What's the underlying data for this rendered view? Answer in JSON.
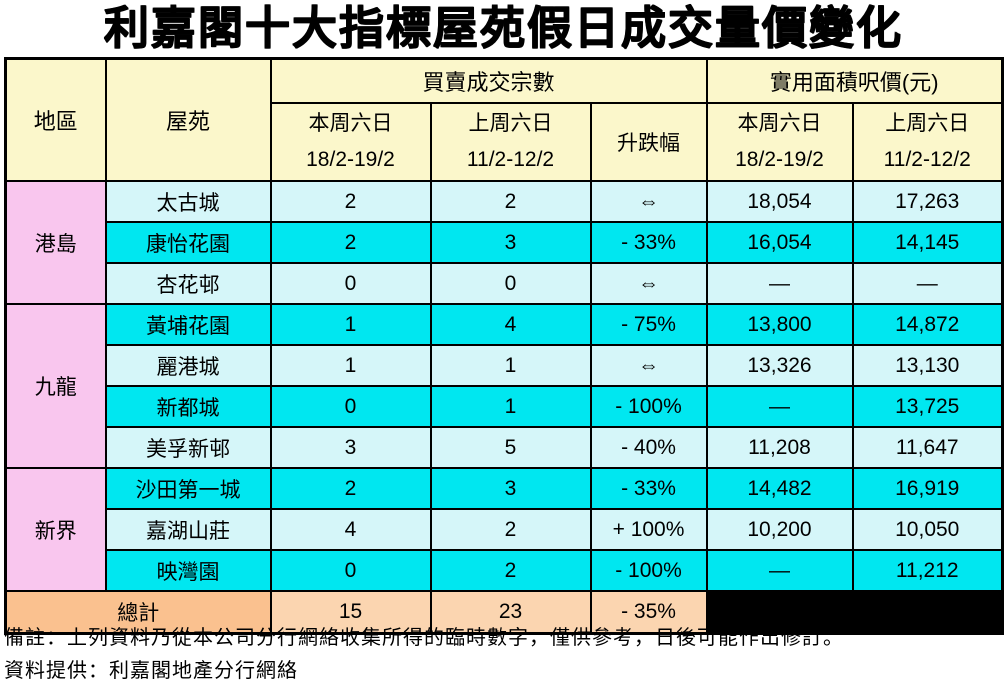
{
  "title": "利嘉閣十大指標屋苑假日成交量價變化",
  "table": {
    "headers": {
      "region": "地區",
      "estate": "屋苑",
      "transactions_group": "買賣成交宗數",
      "price_group": "實用面積呎價(元)",
      "this_week_label": "本周六日",
      "this_week_dates": "18/2-19/2",
      "last_week_label": "上周六日",
      "last_week_dates": "11/2-12/2",
      "change": "升跌幅"
    },
    "regions": [
      {
        "name": "港島",
        "rows": [
          {
            "estate": "太古城",
            "tx_this": "2",
            "tx_last": "2",
            "change": "⇔",
            "price_this": "18,054",
            "price_last": "17,263"
          },
          {
            "estate": "康怡花園",
            "tx_this": "2",
            "tx_last": "3",
            "change": "- 33%",
            "price_this": "16,054",
            "price_last": "14,145"
          },
          {
            "estate": "杏花邨",
            "tx_this": "0",
            "tx_last": "0",
            "change": "⇔",
            "price_this": "—",
            "price_last": "—"
          }
        ]
      },
      {
        "name": "九龍",
        "rows": [
          {
            "estate": "黃埔花園",
            "tx_this": "1",
            "tx_last": "4",
            "change": "- 75%",
            "price_this": "13,800",
            "price_last": "14,872"
          },
          {
            "estate": "麗港城",
            "tx_this": "1",
            "tx_last": "1",
            "change": "⇔",
            "price_this": "13,326",
            "price_last": "13,130"
          },
          {
            "estate": "新都城",
            "tx_this": "0",
            "tx_last": "1",
            "change": "- 100%",
            "price_this": "—",
            "price_last": "13,725"
          },
          {
            "estate": "美孚新邨",
            "tx_this": "3",
            "tx_last": "5",
            "change": "- 40%",
            "price_this": "11,208",
            "price_last": "11,647"
          }
        ]
      },
      {
        "name": "新界",
        "rows": [
          {
            "estate": "沙田第一城",
            "tx_this": "2",
            "tx_last": "3",
            "change": "- 33%",
            "price_this": "14,482",
            "price_last": "16,919"
          },
          {
            "estate": "嘉湖山莊",
            "tx_this": "4",
            "tx_last": "2",
            "change": "+ 100%",
            "price_this": "10,200",
            "price_last": "10,050"
          },
          {
            "estate": "映灣園",
            "tx_this": "0",
            "tx_last": "2",
            "change": "- 100%",
            "price_this": "—",
            "price_last": "11,212"
          }
        ]
      }
    ],
    "total": {
      "label": "總計",
      "tx_this": "15",
      "tx_last": "23",
      "change": "- 35%"
    }
  },
  "footer": {
    "note": "備註：上列資料乃從本公司分行網絡收集所得的臨時數字，僅供參考，日後可能作出修訂。",
    "source": "資料提供：利嘉閣地產分行網絡"
  },
  "colors": {
    "header_bg": "#FBF7CB",
    "region_bg": "#F9C6EE",
    "row_light": "#D5F6F9",
    "row_bright": "#00E7F0",
    "total_label_bg": "#FAC18F",
    "total_value_bg": "#FBD5B0",
    "black_cell": "#000000",
    "border": "#000000"
  }
}
